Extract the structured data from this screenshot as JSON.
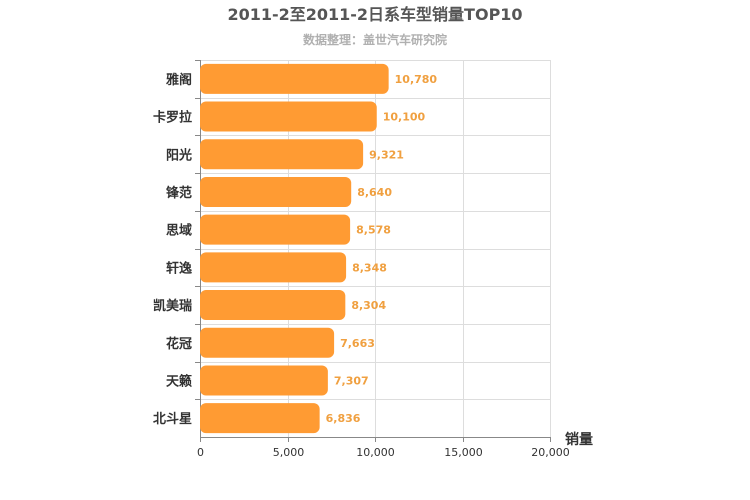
{
  "chart_data": {
    "type": "bar",
    "orientation": "horizontal",
    "title": "2011-2至2011-2日系车型销量TOP10",
    "subtitle": "数据整理：盖世汽车研究院",
    "xlabel": "销量",
    "ylabel": "",
    "xlim": [
      0,
      20000
    ],
    "ticks": [
      0,
      5000,
      10000,
      15000,
      20000
    ],
    "tick_labels": [
      "0",
      "5,000",
      "10,000",
      "15,000",
      "20,000"
    ],
    "grid": true,
    "bar_color": "#ff9b33",
    "categories": [
      "雅阁",
      "卡罗拉",
      "阳光",
      "锋范",
      "思域",
      "轩逸",
      "凯美瑞",
      "花冠",
      "天籁",
      "北斗星"
    ],
    "values": [
      10780,
      10100,
      9321,
      8640,
      8578,
      8348,
      8304,
      7663,
      7307,
      6836
    ],
    "value_labels": [
      "10,780",
      "10,100",
      "9,321",
      "8,640",
      "8,578",
      "8,348",
      "8,304",
      "7,663",
      "7,307",
      "6,836"
    ]
  }
}
